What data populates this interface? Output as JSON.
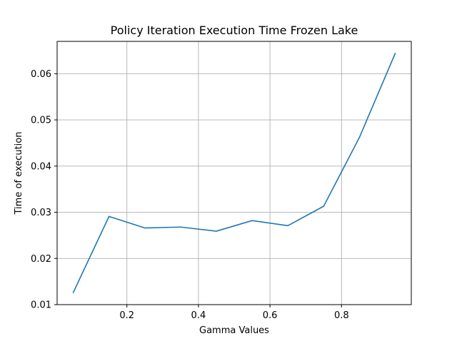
{
  "chart_data": {
    "type": "line",
    "title": "Policy Iteration Execution Time Frozen Lake",
    "xlabel": "Gamma Values",
    "ylabel": "Time of execution",
    "x": [
      0.05,
      0.15,
      0.25,
      0.35,
      0.45,
      0.55,
      0.65,
      0.75,
      0.85,
      0.95
    ],
    "series": [
      {
        "values": [
          0.0126,
          0.0291,
          0.0266,
          0.0268,
          0.0259,
          0.0282,
          0.0271,
          0.0313,
          0.0462,
          0.0644
        ]
      }
    ],
    "xlim": [
      0.005,
      0.995
    ],
    "ylim": [
      0.01,
      0.067
    ],
    "xticks": [
      0.2,
      0.4,
      0.6,
      0.8
    ],
    "xtick_labels": [
      "0.2",
      "0.4",
      "0.6",
      "0.8"
    ],
    "yticks": [
      0.01,
      0.02,
      0.03,
      0.04,
      0.05,
      0.06
    ],
    "ytick_labels": [
      "0.01",
      "0.02",
      "0.03",
      "0.04",
      "0.05",
      "0.06"
    ],
    "grid": true,
    "colors": {
      "line": "#1f77b4",
      "grid": "#b0b0b0",
      "axes": "#000000"
    }
  }
}
